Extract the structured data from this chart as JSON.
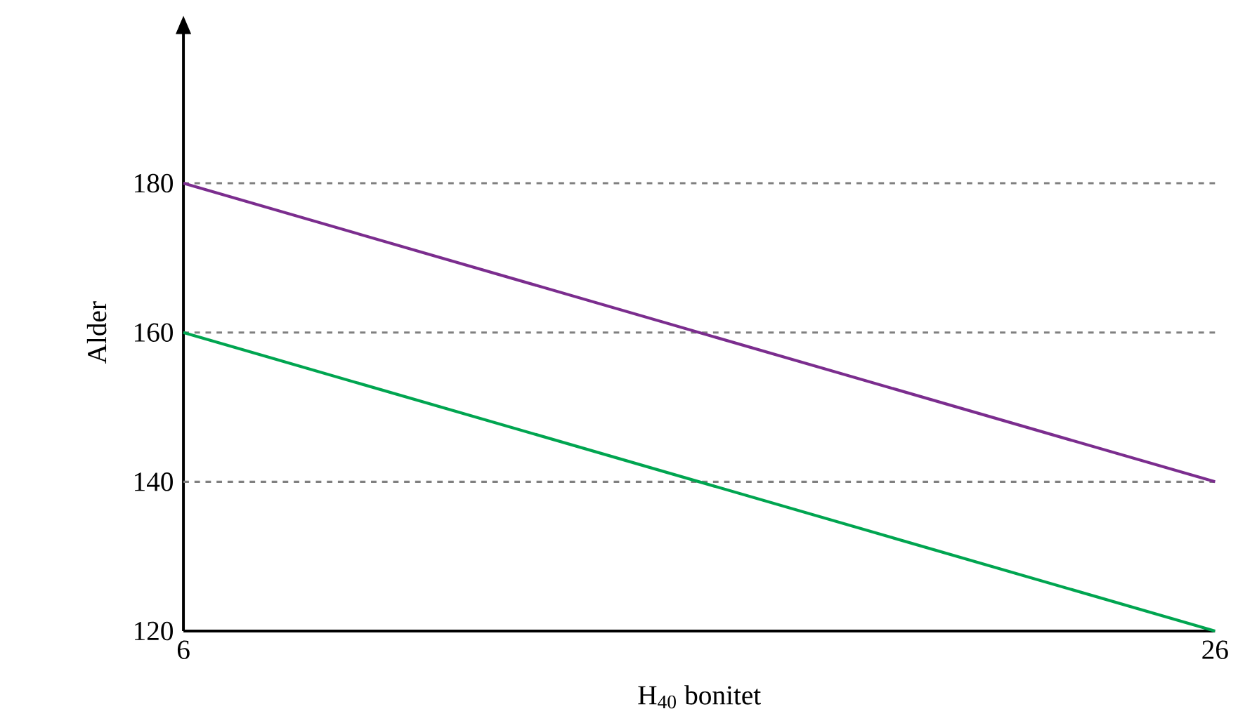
{
  "chart_data": {
    "type": "line",
    "xlabel": "H$_{40}$ bonitet",
    "ylabel": "Alder",
    "x": [
      6,
      26
    ],
    "series": [
      {
        "color": "#7b2d8e",
        "values": [
          180,
          140
        ]
      },
      {
        "color": "#00a550",
        "values": [
          160,
          120
        ]
      }
    ],
    "xlim": [
      6,
      26
    ],
    "ylim": [
      120,
      200
    ],
    "xticks": [
      6,
      26
    ],
    "yticks": [
      120,
      140,
      160,
      180
    ],
    "marker": "none",
    "line_style": "solid",
    "ref_lines": [
      {
        "axis": "y",
        "value": 180,
        "color": "#808080",
        "line_style": "dashed"
      },
      {
        "axis": "y",
        "value": 160,
        "color": "#808080",
        "line_style": "dashed"
      },
      {
        "axis": "y",
        "value": 140,
        "color": "#808080",
        "line_style": "dashed"
      }
    ]
  }
}
